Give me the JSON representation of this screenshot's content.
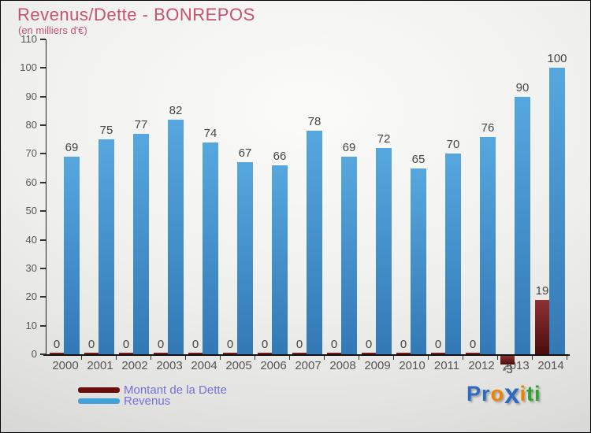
{
  "header": {
    "title": "Revenus/Dette - BONREPOS",
    "subtitle": "(en milliers d'€)"
  },
  "chart_data": {
    "type": "bar",
    "title": "Revenus/Dette - BONREPOS",
    "subtitle": "(en milliers d'€)",
    "categories": [
      "2000",
      "2001",
      "2002",
      "2003",
      "2004",
      "2005",
      "2006",
      "2007",
      "2008",
      "2009",
      "2010",
      "2011",
      "2012",
      "2013",
      "2014"
    ],
    "series": [
      {
        "name": "Montant de la Dette",
        "values": [
          0,
          0,
          0,
          0,
          0,
          0,
          0,
          0,
          0,
          0,
          0,
          0,
          0,
          -3,
          19
        ],
        "color_top": "#8E3131",
        "color_bottom": "#4B0D0D",
        "zero_mark_color": "#7A1A1A"
      },
      {
        "name": "Revenus",
        "values": [
          69,
          75,
          77,
          82,
          74,
          67,
          66,
          78,
          69,
          72,
          65,
          70,
          76,
          90,
          100
        ],
        "color_top": "#57A7DF",
        "color_bottom": "#3379B5"
      }
    ],
    "ylim": [
      0,
      110
    ],
    "ytick_step": 10,
    "grid": false,
    "legend_position": "bottom-left",
    "bar_value_labels": true
  },
  "legend": {
    "items": [
      {
        "label": "Montant de la Dette",
        "color": "#6B0D0D"
      },
      {
        "label": "Revenus",
        "color": "#42A0DB"
      }
    ]
  },
  "logo": {
    "text": "Proxiti",
    "letters": [
      {
        "ch": "P",
        "color": "#2E6BC0"
      },
      {
        "ch": "r",
        "color": "#2E6BC0"
      },
      {
        "ch": "o",
        "color": "#EE8200"
      },
      {
        "ch": "x",
        "color": "#2E6BC0",
        "big": true
      },
      {
        "ch": "i",
        "color": "#EE8200"
      },
      {
        "ch": "t",
        "color": "#2EA12E"
      },
      {
        "ch": "i",
        "color": "#2EA12E"
      }
    ]
  },
  "colors": {
    "title": "#C5536F",
    "legend_text": "#7272DA",
    "axis": "#111111",
    "tick_label": "#555555",
    "value_label": "#454545"
  }
}
